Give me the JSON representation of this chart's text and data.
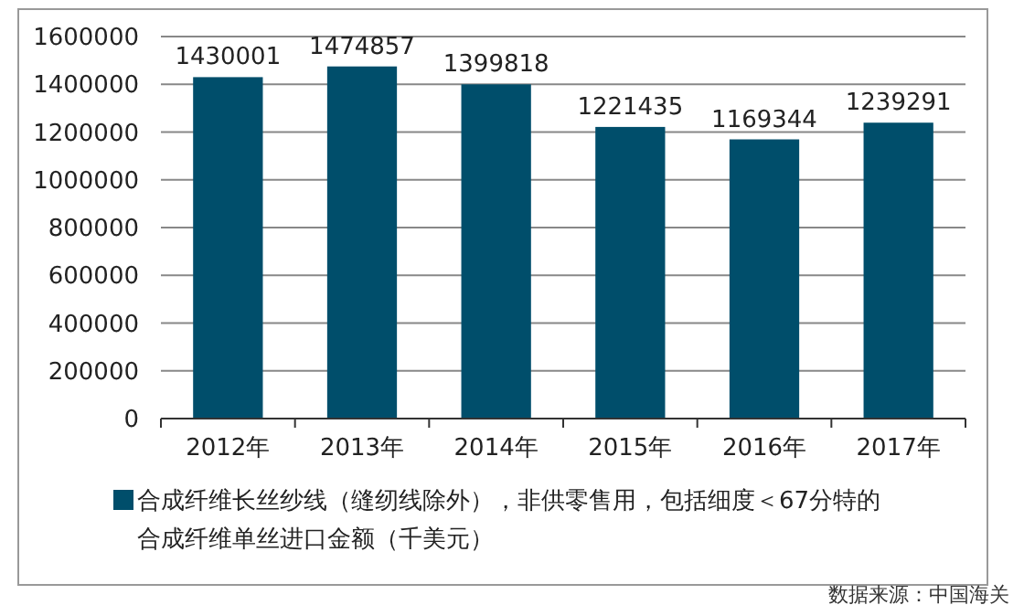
{
  "chart_data": {
    "type": "bar",
    "categories": [
      "2012年",
      "2013年",
      "2014年",
      "2015年",
      "2016年",
      "2017年"
    ],
    "series": [
      {
        "name": "合成纤维长丝纱线（缝纫线除外），非供零售用，包括细度＜67分特的合成纤维单丝进口金额（千美元）",
        "color": "#004e6b",
        "values": [
          1430001,
          1474857,
          1399818,
          1221435,
          1169344,
          1239291
        ]
      }
    ],
    "ylim": [
      0,
      1600000
    ],
    "yticks": [
      0,
      200000,
      400000,
      600000,
      800000,
      1000000,
      1200000,
      1400000,
      1600000
    ],
    "grid": "y",
    "data_labels": true,
    "legend": "bottom",
    "annotations": [
      "数据来源：中国海关"
    ]
  }
}
